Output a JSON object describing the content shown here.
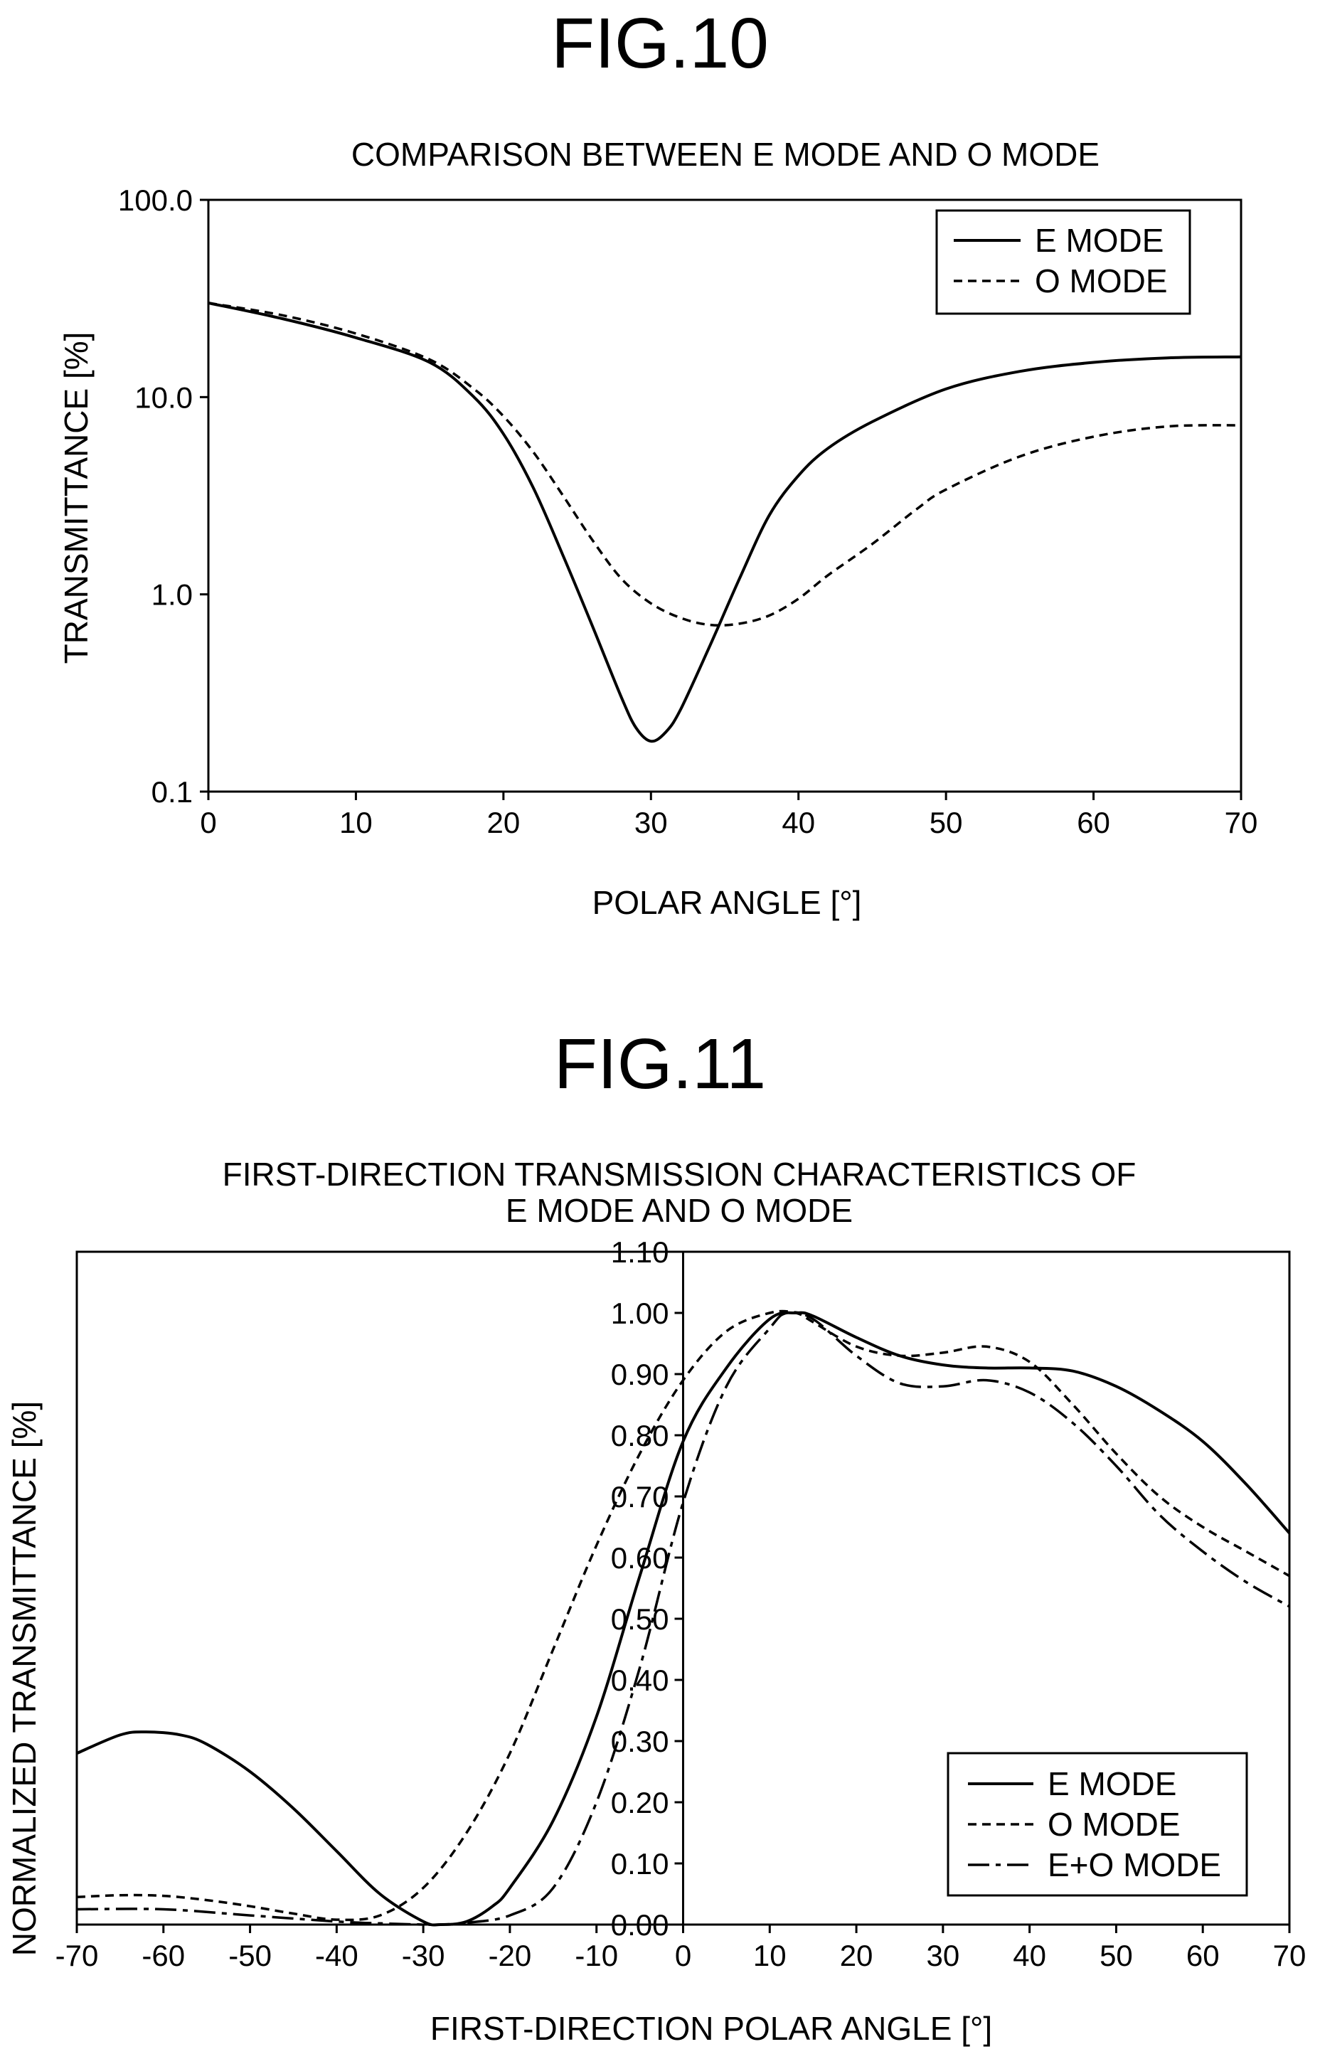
{
  "chart_data": [
    {
      "figure_label": "FIG.10",
      "type": "line",
      "title": "COMPARISON BETWEEN E MODE AND O MODE",
      "xlabel": "POLAR ANGLE [°]",
      "ylabel": "TRANSMITTANCE [%]",
      "xlim": [
        0,
        70
      ],
      "ylim": [
        0.1,
        100
      ],
      "yscale": "log",
      "xticks": [
        "0",
        "10",
        "20",
        "30",
        "40",
        "50",
        "60",
        "70"
      ],
      "yticks": [
        "0.1",
        "1.0",
        "10.0",
        "100.0"
      ],
      "grid": false,
      "legend_position": "top-right",
      "series": [
        {
          "name": "E MODE",
          "style": "solid",
          "x": [
            0,
            5,
            10,
            15,
            18,
            20,
            22,
            24,
            26,
            28,
            29,
            30,
            31,
            32,
            34,
            36,
            38,
            40,
            42,
            45,
            50,
            55,
            60,
            65,
            70
          ],
          "y": [
            30,
            25,
            20,
            15,
            10,
            6.5,
            3.5,
            1.6,
            0.7,
            0.3,
            0.21,
            0.18,
            0.2,
            0.26,
            0.55,
            1.2,
            2.5,
            4.0,
            5.5,
            7.5,
            11,
            13.5,
            15,
            15.8,
            16
          ]
        },
        {
          "name": "O MODE",
          "style": "dashed",
          "x": [
            0,
            5,
            10,
            15,
            18,
            20,
            22,
            24,
            26,
            28,
            30,
            32,
            34,
            36,
            38,
            40,
            42,
            45,
            48,
            50,
            55,
            60,
            65,
            70
          ],
          "y": [
            30,
            26,
            21,
            15.5,
            11,
            8,
            5.3,
            3.2,
            1.9,
            1.2,
            0.9,
            0.76,
            0.7,
            0.71,
            0.78,
            0.95,
            1.25,
            1.8,
            2.7,
            3.4,
            5.0,
            6.3,
            7.1,
            7.2
          ]
        }
      ]
    },
    {
      "figure_label": "FIG.11",
      "type": "line",
      "title": "FIRST-DIRECTION TRANSMISSION CHARACTERISTICS OF E MODE AND O MODE",
      "title_lines": [
        "FIRST-DIRECTION TRANSMISSION CHARACTERISTICS OF",
        "E MODE AND O MODE"
      ],
      "xlabel": "FIRST-DIRECTION POLAR ANGLE [°]",
      "ylabel": "NORMALIZED TRANSMITTANCE [%]",
      "xlim": [
        -70,
        70
      ],
      "ylim": [
        0,
        1.1
      ],
      "xticks": [
        "-70",
        "-60",
        "-50",
        "-40",
        "-30",
        "-20",
        "-10",
        "0",
        "10",
        "20",
        "30",
        "40",
        "50",
        "60",
        "70"
      ],
      "yticks": [
        "0.00",
        "0.10",
        "0.20",
        "0.30",
        "0.40",
        "0.50",
        "0.60",
        "0.70",
        "0.80",
        "0.90",
        "1.00",
        "1.10"
      ],
      "grid": false,
      "legend_position": "bottom-right",
      "series": [
        {
          "name": "E MODE",
          "style": "solid",
          "x": [
            -70,
            -65,
            -62,
            -58,
            -55,
            -50,
            -45,
            -40,
            -35,
            -30,
            -28,
            -25,
            -22,
            -20,
            -15,
            -10,
            -5,
            0,
            5,
            10,
            13,
            15,
            20,
            25,
            30,
            35,
            40,
            45,
            50,
            55,
            60,
            65,
            70
          ],
          "y": [
            0.28,
            0.31,
            0.315,
            0.31,
            0.295,
            0.25,
            0.19,
            0.12,
            0.05,
            0.005,
            0.0,
            0.005,
            0.03,
            0.06,
            0.17,
            0.34,
            0.57,
            0.79,
            0.91,
            0.99,
            1.0,
            0.995,
            0.96,
            0.93,
            0.915,
            0.91,
            0.91,
            0.905,
            0.88,
            0.84,
            0.79,
            0.72,
            0.64
          ]
        },
        {
          "name": "O MODE",
          "style": "dashed",
          "x": [
            -70,
            -65,
            -60,
            -55,
            -50,
            -45,
            -40,
            -35,
            -30,
            -25,
            -20,
            -15,
            -10,
            -5,
            0,
            5,
            10,
            13,
            15,
            20,
            25,
            30,
            35,
            40,
            45,
            50,
            55,
            60,
            65,
            70
          ],
          "y": [
            0.045,
            0.048,
            0.047,
            0.04,
            0.03,
            0.018,
            0.008,
            0.015,
            0.06,
            0.15,
            0.28,
            0.45,
            0.62,
            0.77,
            0.89,
            0.97,
            1.0,
            1.0,
            0.985,
            0.945,
            0.93,
            0.935,
            0.945,
            0.92,
            0.85,
            0.77,
            0.7,
            0.65,
            0.61,
            0.57
          ]
        },
        {
          "name": "E+O MODE",
          "style": "dashdot",
          "x": [
            -70,
            -60,
            -50,
            -40,
            -35,
            -30,
            -28,
            -25,
            -20,
            -15,
            -10,
            -5,
            0,
            5,
            10,
            12,
            15,
            20,
            25,
            30,
            35,
            40,
            45,
            50,
            55,
            60,
            65,
            70
          ],
          "y": [
            0.025,
            0.025,
            0.015,
            0.005,
            0.002,
            0.0,
            0.0,
            0.003,
            0.015,
            0.06,
            0.2,
            0.42,
            0.69,
            0.88,
            0.975,
            1.0,
            0.99,
            0.93,
            0.885,
            0.88,
            0.89,
            0.87,
            0.82,
            0.75,
            0.67,
            0.61,
            0.56,
            0.52
          ]
        }
      ]
    }
  ]
}
